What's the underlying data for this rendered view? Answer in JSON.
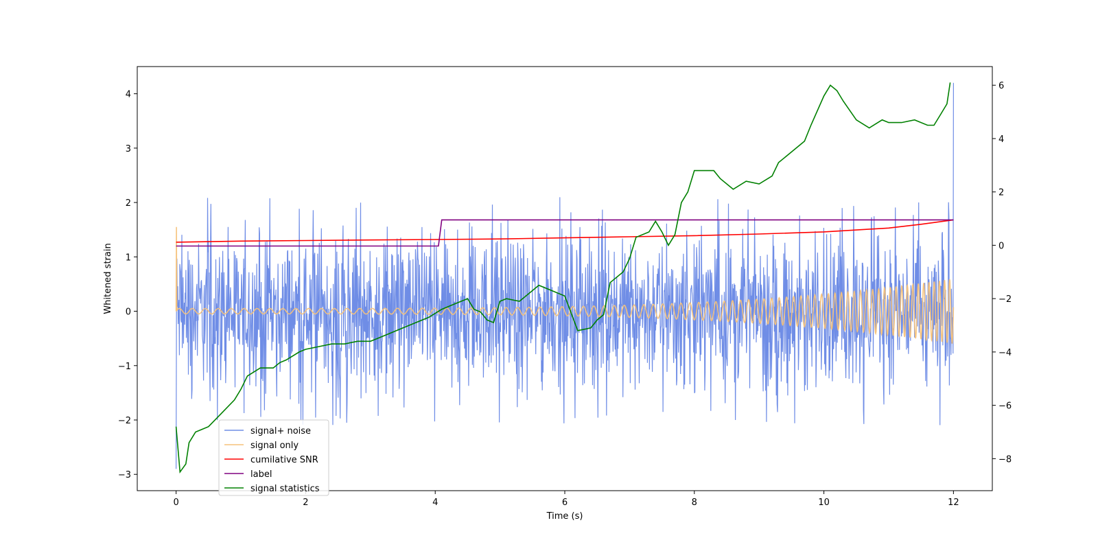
{
  "chart_data": {
    "type": "line",
    "title": "",
    "xlabel": "Time (s)",
    "ylabel": "Whitened strain",
    "ylabel_right": "",
    "xlim": [
      -0.6,
      12.6
    ],
    "ylim_left": [
      -3.3,
      4.5
    ],
    "ylim_right": [
      -9.2,
      6.7
    ],
    "x_ticks": [
      0,
      2,
      4,
      6,
      8,
      10,
      12
    ],
    "y_ticks_left": [
      -3,
      -2,
      -1,
      0,
      1,
      2,
      3,
      4
    ],
    "y_ticks_right": [
      -8,
      -6,
      -4,
      -2,
      0,
      2,
      4,
      6
    ],
    "x_tick_labels": [
      "0",
      "2",
      "4",
      "6",
      "8",
      "10",
      "12"
    ],
    "y_tick_labels_left": [
      "−3",
      "−2",
      "−1",
      "0",
      "1",
      "2",
      "3",
      "4"
    ],
    "y_tick_labels_right": [
      "−8",
      "−6",
      "−4",
      "−2",
      "0",
      "2",
      "4",
      "6"
    ],
    "grid": false,
    "legend_position": "lower-left",
    "series": [
      {
        "name": "signal+ noise",
        "color": "#6f8de6",
        "axis": "left",
        "kind": "noise",
        "x_range": [
          0,
          12
        ],
        "center": 0.0,
        "spread_min": -2.9,
        "spread_max": 2.1,
        "final_peak": 4.2
      },
      {
        "name": "signal only",
        "color": "#f5c27a",
        "axis": "left",
        "kind": "chirp",
        "x_range": [
          0,
          12
        ],
        "amplitude_start": 0.05,
        "amplitude_end": 0.6,
        "initial_spike": 1.55
      },
      {
        "name": "cumilative SNR",
        "color": "#ff0000",
        "axis": "left",
        "x": [
          0,
          1,
          2,
          3,
          4,
          5,
          6,
          7,
          8,
          9,
          10,
          11,
          11.5,
          12
        ],
        "y": [
          1.27,
          1.29,
          1.3,
          1.31,
          1.32,
          1.33,
          1.35,
          1.37,
          1.39,
          1.42,
          1.46,
          1.53,
          1.6,
          1.68
        ]
      },
      {
        "name": "label",
        "color": "#800080",
        "axis": "left",
        "x": [
          0,
          4.05,
          4.1,
          12
        ],
        "y": [
          1.2,
          1.2,
          1.68,
          1.68
        ]
      },
      {
        "name": "signal statistics",
        "color": "#008000",
        "axis": "right",
        "x": [
          0,
          0.06,
          0.15,
          0.2,
          0.3,
          0.4,
          0.5,
          0.7,
          0.9,
          1.0,
          1.1,
          1.3,
          1.5,
          1.6,
          1.7,
          1.9,
          2.0,
          2.2,
          2.4,
          2.6,
          2.8,
          3.0,
          3.1,
          3.3,
          3.5,
          3.7,
          3.9,
          4.1,
          4.3,
          4.5,
          4.6,
          4.7,
          4.8,
          4.9,
          5.0,
          5.1,
          5.3,
          5.4,
          5.5,
          5.6,
          5.8,
          6.0,
          6.2,
          6.4,
          6.5,
          6.6,
          6.7,
          6.9,
          7.0,
          7.1,
          7.3,
          7.4,
          7.5,
          7.6,
          7.7,
          7.8,
          7.9,
          8.0,
          8.3,
          8.4,
          8.6,
          8.8,
          9.0,
          9.2,
          9.3,
          9.5,
          9.7,
          9.8,
          10.0,
          10.1,
          10.2,
          10.3,
          10.5,
          10.7,
          10.9,
          11.0,
          11.2,
          11.4,
          11.6,
          11.7,
          11.8,
          11.9,
          11.95
        ],
        "y": [
          -6.8,
          -8.5,
          -8.2,
          -7.4,
          -7.0,
          -6.9,
          -6.8,
          -6.3,
          -5.8,
          -5.4,
          -4.9,
          -4.6,
          -4.6,
          -4.4,
          -4.3,
          -4.0,
          -3.9,
          -3.8,
          -3.7,
          -3.7,
          -3.6,
          -3.6,
          -3.5,
          -3.3,
          -3.1,
          -2.9,
          -2.7,
          -2.4,
          -2.2,
          -2.0,
          -2.4,
          -2.5,
          -2.8,
          -2.9,
          -2.1,
          -2.0,
          -2.1,
          -1.9,
          -1.7,
          -1.5,
          -1.7,
          -1.9,
          -3.2,
          -3.1,
          -2.8,
          -2.6,
          -1.4,
          -1.0,
          -0.5,
          0.3,
          0.5,
          0.9,
          0.5,
          0.0,
          0.4,
          1.6,
          2.0,
          2.8,
          2.8,
          2.5,
          2.1,
          2.4,
          2.3,
          2.6,
          3.1,
          3.5,
          3.9,
          4.5,
          5.6,
          6.0,
          5.8,
          5.4,
          4.7,
          4.4,
          4.7,
          4.6,
          4.6,
          4.7,
          4.5,
          4.5,
          4.9,
          5.3,
          6.1
        ]
      }
    ]
  }
}
